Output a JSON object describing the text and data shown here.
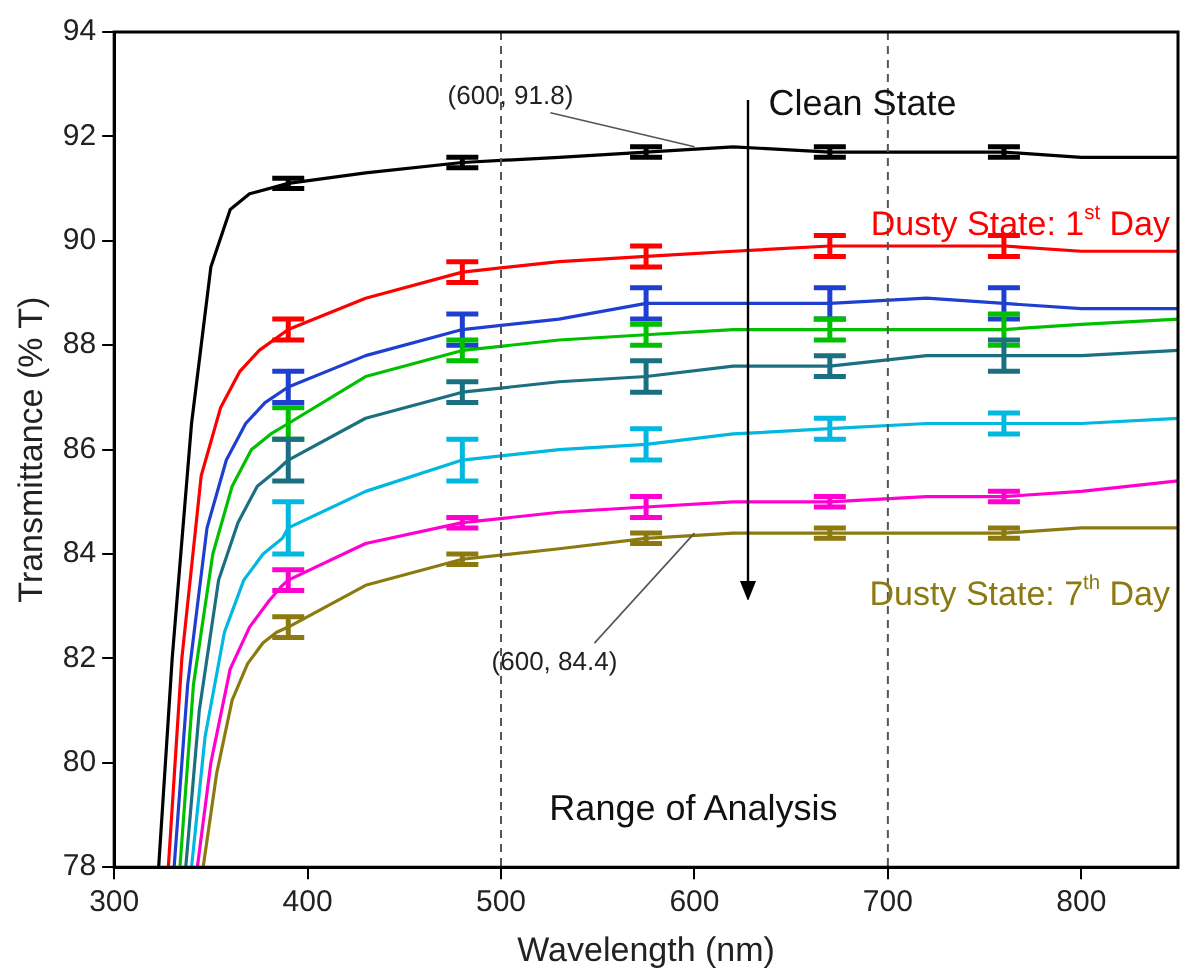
{
  "chart_data": {
    "type": "line",
    "xlabel": "Wavelength (nm)",
    "ylabel": "Transmittance (% T)",
    "xlim": [
      300,
      850
    ],
    "xticks": [
      300,
      400,
      500,
      600,
      700,
      800
    ],
    "ylim": [
      78,
      94
    ],
    "yticks": [
      78,
      80,
      82,
      84,
      86,
      88,
      90,
      92,
      94
    ],
    "grid": false,
    "legend": false,
    "marker": "none",
    "line_style": "solid",
    "ref_lines": [
      {
        "axis": "x",
        "value": 500,
        "line_style": "dashed",
        "color": "#555555"
      },
      {
        "axis": "x",
        "value": 700,
        "line_style": "dashed",
        "color": "#555555"
      }
    ],
    "annotations": [
      {
        "text": "(600, 91.8)",
        "x": 600,
        "y": 91.8
      },
      "Clean State",
      "Dusty State: 1$^{st}$ Day",
      "Dusty State: 7$^{th}$ Day",
      {
        "text": "(600, 84.4)",
        "x": 600,
        "y": 84.4
      },
      "Range of Analysis"
    ],
    "series": [
      {
        "color": "#000000",
        "x": [
          323,
          330,
          340,
          350,
          360,
          370,
          390,
          430,
          480,
          530,
          575,
          620,
          670,
          720,
          760,
          800,
          850
        ],
        "values": [
          78,
          82,
          86.5,
          89.5,
          90.6,
          90.9,
          91.1,
          91.3,
          91.5,
          91.6,
          91.7,
          91.8,
          91.7,
          91.7,
          91.7,
          91.6,
          91.6
        ],
        "errors": [
          null,
          null,
          null,
          null,
          null,
          null,
          0.1,
          null,
          0.1,
          null,
          0.1,
          null,
          0.1,
          null,
          0.1,
          null,
          null
        ]
      },
      {
        "color": "#ff0000",
        "x": [
          328,
          335,
          345,
          355,
          365,
          375,
          390,
          430,
          480,
          530,
          575,
          620,
          670,
          720,
          760,
          800,
          850
        ],
        "values": [
          78,
          82,
          85.5,
          86.8,
          87.5,
          87.9,
          88.3,
          88.9,
          89.4,
          89.6,
          89.7,
          89.8,
          89.9,
          89.9,
          89.9,
          89.8,
          89.8
        ],
        "errors": [
          null,
          null,
          null,
          null,
          null,
          null,
          0.2,
          null,
          0.2,
          null,
          0.2,
          null,
          0.2,
          null,
          0.2,
          null,
          null
        ]
      },
      {
        "color": "#1f3fd0",
        "x": [
          331,
          338,
          348,
          358,
          368,
          378,
          390,
          430,
          480,
          530,
          575,
          620,
          670,
          720,
          760,
          800,
          850
        ],
        "values": [
          78,
          81.5,
          84.5,
          85.8,
          86.5,
          86.9,
          87.2,
          87.8,
          88.3,
          88.5,
          88.8,
          88.8,
          88.8,
          88.9,
          88.8,
          88.7,
          88.7
        ],
        "errors": [
          null,
          null,
          null,
          null,
          null,
          null,
          0.3,
          null,
          0.3,
          null,
          0.3,
          null,
          0.3,
          null,
          0.3,
          null,
          null
        ]
      },
      {
        "color": "#00c000",
        "x": [
          334,
          341,
          351,
          361,
          371,
          381,
          390,
          430,
          480,
          530,
          575,
          620,
          670,
          720,
          760,
          800,
          850
        ],
        "values": [
          78,
          81.5,
          84,
          85.3,
          86,
          86.3,
          86.5,
          87.4,
          87.9,
          88.1,
          88.2,
          88.3,
          88.3,
          88.3,
          88.3,
          88.4,
          88.5
        ],
        "errors": [
          null,
          null,
          null,
          null,
          null,
          null,
          0.3,
          null,
          0.2,
          null,
          0.2,
          null,
          0.2,
          null,
          0.3,
          null,
          null
        ]
      },
      {
        "color": "#1a7080",
        "x": [
          337,
          344,
          354,
          364,
          374,
          384,
          390,
          430,
          480,
          530,
          575,
          620,
          670,
          720,
          760,
          800,
          850
        ],
        "values": [
          78,
          81,
          83.5,
          84.6,
          85.3,
          85.6,
          85.8,
          86.6,
          87.1,
          87.3,
          87.4,
          87.6,
          87.6,
          87.8,
          87.8,
          87.8,
          87.9
        ],
        "errors": [
          null,
          null,
          null,
          null,
          null,
          null,
          0.4,
          null,
          0.2,
          null,
          0.3,
          null,
          0.2,
          null,
          0.3,
          null,
          null
        ]
      },
      {
        "color": "#00b8e0",
        "x": [
          340,
          347,
          357,
          367,
          377,
          387,
          390,
          430,
          480,
          530,
          575,
          620,
          670,
          720,
          760,
          800,
          850
        ],
        "values": [
          78,
          80.5,
          82.5,
          83.5,
          84,
          84.3,
          84.5,
          85.2,
          85.8,
          86,
          86.1,
          86.3,
          86.4,
          86.5,
          86.5,
          86.5,
          86.6
        ],
        "errors": [
          null,
          null,
          null,
          null,
          null,
          null,
          0.5,
          null,
          0.4,
          null,
          0.3,
          null,
          0.2,
          null,
          0.2,
          null,
          null
        ]
      },
      {
        "color": "#ff00d0",
        "x": [
          343,
          350,
          360,
          370,
          380,
          387,
          390,
          430,
          480,
          530,
          575,
          620,
          670,
          720,
          760,
          800,
          850
        ],
        "values": [
          78,
          80,
          81.8,
          82.6,
          83.1,
          83.4,
          83.5,
          84.2,
          84.6,
          84.8,
          84.9,
          85,
          85,
          85.1,
          85.1,
          85.2,
          85.4
        ],
        "errors": [
          null,
          null,
          null,
          null,
          null,
          null,
          0.2,
          null,
          0.1,
          null,
          0.2,
          null,
          0.1,
          null,
          0.1,
          null,
          null
        ]
      },
      {
        "color": "#8c7a10",
        "x": [
          346,
          353,
          361,
          369,
          377,
          384,
          390,
          430,
          480,
          530,
          575,
          620,
          670,
          720,
          760,
          800,
          850
        ],
        "values": [
          78,
          79.8,
          81.2,
          81.9,
          82.3,
          82.5,
          82.6,
          83.4,
          83.9,
          84.1,
          84.3,
          84.4,
          84.4,
          84.4,
          84.4,
          84.5,
          84.5
        ],
        "errors": [
          null,
          null,
          null,
          null,
          null,
          null,
          0.2,
          null,
          0.1,
          null,
          0.1,
          null,
          0.1,
          null,
          0.1,
          null,
          null
        ]
      }
    ]
  }
}
